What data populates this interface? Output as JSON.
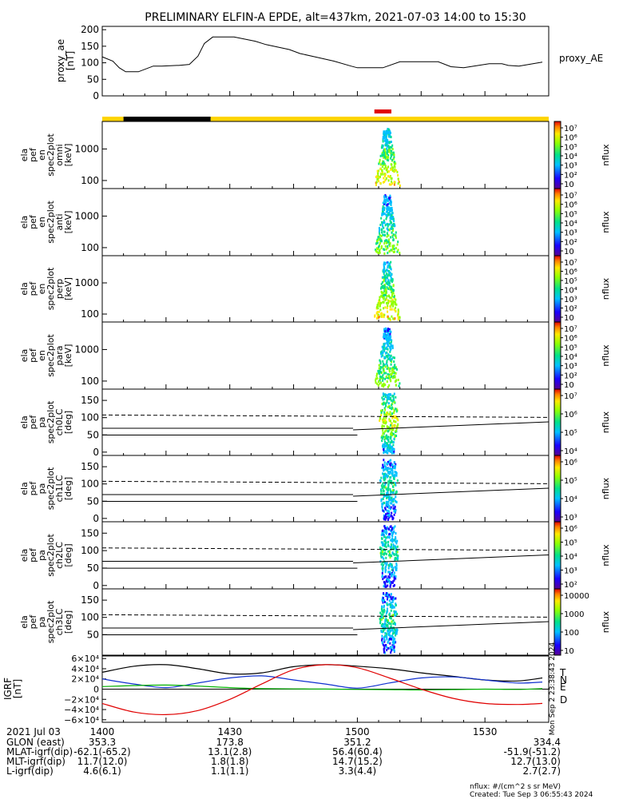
{
  "title": "PRELIMINARY ELFIN-A EPDE, alt=437km, 2021-07-03 14:00 to 15:30",
  "colors": {
    "black": "#000000",
    "yellow": "#ffd400",
    "red": "#e00000",
    "blue": "#1030d0",
    "green": "#00b000"
  },
  "chart_data": [
    {
      "type": "line",
      "name": "proxy_ae",
      "ylabel": [
        "proxy_ae",
        "[nT]"
      ],
      "legend": "proxy_AE",
      "ylim": [
        0,
        210
      ],
      "yticks": [
        "200",
        "150",
        "100",
        "50",
        "0"
      ],
      "ytick_values": [
        200,
        150,
        100,
        50,
        0
      ],
      "x_minutes": [
        0,
        5,
        8,
        11,
        17,
        24,
        28,
        35,
        36,
        41,
        45,
        48,
        52,
        56,
        62,
        72,
        77,
        88,
        93,
        100,
        109,
        117,
        120,
        127,
        132,
        140,
        148,
        158,
        164,
        170,
        182,
        188,
        191,
        196,
        207
      ],
      "y": [
        118,
        105,
        85,
        73,
        73,
        90,
        90,
        92,
        92,
        95,
        120,
        158,
        178,
        178,
        178,
        165,
        155,
        140,
        128,
        118,
        105,
        90,
        85,
        85,
        85,
        103,
        103,
        103,
        88,
        85,
        97,
        97,
        92,
        90,
        102
      ]
    },
    {
      "type": "heatmap",
      "orbit_bar": [
        {
          "color": "yellow",
          "from_min": 0,
          "to_min": 10
        },
        {
          "color": "black",
          "from_min": 10,
          "to_min": 51
        },
        {
          "color": "yellow",
          "from_min": 51,
          "to_min": 210
        }
      ],
      "science_zone": {
        "color": "red",
        "from_min": 128,
        "to_min": 136
      },
      "panels": [
        {
          "ylabel": [
            "ela",
            "pef",
            "en",
            "spec2plot",
            "omni",
            "[keV]"
          ],
          "yticks": [
            "1000",
            "100"
          ],
          "cbar": {
            "label": "nflux",
            "ticks": [
              "10⁷",
              "10⁶",
              "10⁵",
              "10⁴",
              "10³",
              "10²",
              "10"
            ]
          }
        },
        {
          "ylabel": [
            "ela",
            "pef",
            "en",
            "spec2plot",
            "anti",
            "[keV]"
          ],
          "yticks": [
            "1000",
            "100"
          ],
          "cbar": {
            "label": "nflux",
            "ticks": [
              "10⁷",
              "10⁶",
              "10⁵",
              "10⁴",
              "10³",
              "10²",
              "10"
            ]
          }
        },
        {
          "ylabel": [
            "ela",
            "pef",
            "en",
            "spec2plot",
            "perp",
            "[keV]"
          ],
          "yticks": [
            "1000",
            "100"
          ],
          "cbar": {
            "label": "nflux",
            "ticks": [
              "10⁷",
              "10⁶",
              "10⁵",
              "10⁴",
              "10³",
              "10²",
              "10"
            ]
          }
        },
        {
          "ylabel": [
            "ela",
            "pef",
            "en",
            "spec2plot",
            "para",
            "[keV]"
          ],
          "yticks": [
            "1000",
            "100"
          ],
          "cbar": {
            "label": "nflux",
            "ticks": [
              "10⁷",
              "10⁶",
              "10⁵",
              "10⁴",
              "10³",
              "10²",
              "10"
            ]
          }
        },
        {
          "ylabel": [
            "ela",
            "pef",
            "pa",
            "spec2plot",
            "ch0LC",
            "[deg]"
          ],
          "yticks": [
            "150",
            "100",
            "50",
            "0"
          ],
          "cbar": {
            "label": "nflux",
            "ticks": [
              "10⁷",
              "10⁶",
              "10⁵",
              "10⁴"
            ]
          }
        },
        {
          "ylabel": [
            "ela",
            "pef",
            "pa",
            "spec2plot",
            "ch1LC",
            "[deg]"
          ],
          "yticks": [
            "150",
            "100",
            "50",
            "0"
          ],
          "cbar": {
            "label": "nflux",
            "ticks": [
              "10⁶",
              "10⁵",
              "10⁴",
              "10³"
            ]
          }
        },
        {
          "ylabel": [
            "ela",
            "pef",
            "pa",
            "spec2plot",
            "ch2LC",
            "[deg]"
          ],
          "yticks": [
            "150",
            "100",
            "50",
            "0"
          ],
          "cbar": {
            "label": "nflux",
            "ticks": [
              "10⁶",
              "10⁵",
              "10⁴",
              "10³",
              "10²"
            ]
          }
        },
        {
          "ylabel": [
            "ela",
            "pef",
            "pa",
            "spec2plot",
            "ch3LC",
            "[deg]"
          ],
          "yticks": [
            "150",
            "100",
            "50"
          ],
          "cbar": {
            "label": "nflux",
            "ticks": [
              "10000",
              "1000",
              "100",
              "10"
            ]
          }
        }
      ]
    },
    {
      "type": "line",
      "name": "IGRF",
      "ylabel": [
        "IGRF",
        "[nT]"
      ],
      "ylim": [
        -65000,
        65000
      ],
      "yticks": [
        "6×10⁴",
        "4×10⁴",
        "2×10⁴",
        "0",
        "−2×10⁴",
        "−4×10⁴",
        "−6×10⁴"
      ],
      "ytick_values": [
        60000,
        40000,
        20000,
        0,
        -20000,
        -40000,
        -60000
      ],
      "legend": [
        "T",
        "N",
        "E",
        "D"
      ],
      "x_minutes": [
        0,
        15,
        30,
        45,
        60,
        75,
        90,
        105,
        120,
        135,
        150,
        165,
        180,
        195,
        207
      ],
      "series": [
        {
          "name": "T",
          "color": "black",
          "y": [
            33000,
            45000,
            48000,
            40000,
            30000,
            32000,
            44000,
            48000,
            45000,
            40000,
            32000,
            25000,
            18000,
            16000,
            22000
          ]
        },
        {
          "name": "N",
          "color": "blue",
          "y": [
            20000,
            10000,
            3000,
            12000,
            22000,
            26000,
            18000,
            10000,
            2000,
            12000,
            22000,
            24000,
            18000,
            12000,
            14000
          ]
        },
        {
          "name": "E",
          "color": "green",
          "y": [
            5000,
            7000,
            8000,
            6000,
            3000,
            1000,
            500,
            200,
            -500,
            -1000,
            -1500,
            -800,
            0,
            -500,
            1000
          ]
        },
        {
          "name": "D",
          "color": "red",
          "y": [
            -28000,
            -45000,
            -50000,
            -42000,
            -20000,
            10000,
            38000,
            48000,
            42000,
            22000,
            0,
            -18000,
            -28000,
            -30000,
            -28000
          ]
        }
      ]
    }
  ],
  "bottom": {
    "x_tick_labels": [
      "1400",
      "1430",
      "1500",
      "1530"
    ],
    "date": "2021 Jul 03",
    "rows": [
      {
        "label": "GLON (east)",
        "values": [
          "353.3",
          "173.8",
          "351.2",
          "334.4"
        ]
      },
      {
        "label": "MLAT-igrf(dip)",
        "values": [
          "-62.1(-65.2)",
          "13.1(2.8)",
          "56.4(60.4)",
          "-51.9(-51.2)"
        ]
      },
      {
        "label": "MLT-igrf(dip)",
        "values": [
          "11.7(12.0)",
          "1.8(1.8)",
          "14.7(15.2)",
          "12.7(13.0)"
        ]
      },
      {
        "label": "L-igrf(dip)",
        "values": [
          "4.6(6.1)",
          "1.1(1.1)",
          "3.3(4.4)",
          "2.7(2.7)"
        ]
      }
    ],
    "nflux_units": "nflux: #/(cm^2 s sr MeV)",
    "created": "Created: Tue Sep  3 06:55:43 2024",
    "side_stamp": "Mon Sep  2 23:38:43 2024"
  }
}
